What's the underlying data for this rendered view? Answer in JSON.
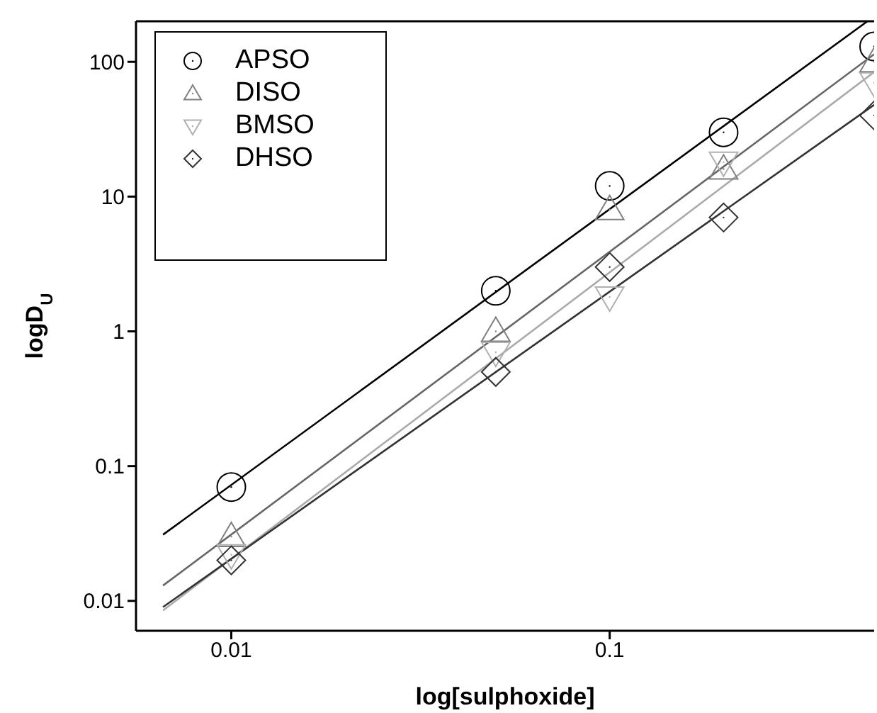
{
  "chart_data": {
    "type": "scatter",
    "xlabel": "log[sulphoxide]",
    "ylabel": "logD$_{U}$",
    "log": "xy",
    "xlim": [
      0.0056,
      0.5
    ],
    "ylim": [
      0.006,
      200
    ],
    "xticks": [
      0.01,
      0.1
    ],
    "yticks": [
      0.01,
      0.1,
      1,
      10,
      100
    ],
    "legend": "top left",
    "x": [
      0.01,
      0.05,
      0.1,
      0.2,
      0.5
    ],
    "series": [
      {
        "name": "APSO",
        "color": "#000000",
        "marker": "circle",
        "values": [
          0.07,
          2,
          12,
          30,
          130
        ]
      },
      {
        "name": "DISO",
        "color": "#808080",
        "marker": "triangle",
        "values": [
          0.03,
          1.0,
          8,
          16,
          100
        ]
      },
      {
        "name": "BMSO",
        "color": "#b0b0b0",
        "marker": "triangle_down",
        "values": [
          0.022,
          0.7,
          1.8,
          18,
          70
        ]
      },
      {
        "name": "DHSO",
        "color": "#333333",
        "marker": "diamond",
        "values": [
          0.02,
          0.5,
          3,
          7,
          40
        ]
      },
      {
        "type": "line",
        "color": "#000000",
        "x": [
          0.0066,
          0.48
        ],
        "values": [
          0.031,
          200
        ]
      },
      {
        "type": "line",
        "color": "#666666",
        "x": [
          0.0066,
          0.5
        ],
        "values": [
          0.013,
          114
        ]
      },
      {
        "type": "line",
        "color": "#aaaaaa",
        "x": [
          0.0066,
          0.5
        ],
        "values": [
          0.0085,
          84
        ]
      },
      {
        "type": "line",
        "color": "#333333",
        "x": [
          0.0066,
          0.5
        ],
        "values": [
          0.009,
          48
        ]
      }
    ]
  }
}
